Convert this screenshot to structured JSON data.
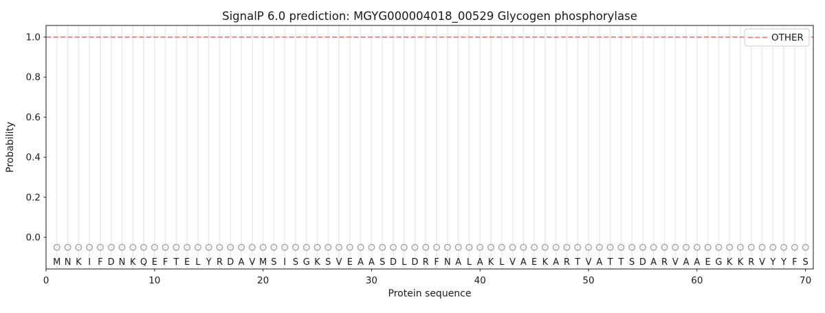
{
  "figure": {
    "title": "SignalP 6.0 prediction: MGYG000004018_00529 Glycogen phosphorylase"
  },
  "chart_data": {
    "type": "line",
    "title": "SignalP 6.0 prediction: MGYG000004018_00529 Glycogen phosphorylase",
    "xlabel": "Protein sequence",
    "ylabel": "Probability",
    "xlim": [
      0,
      70.72
    ],
    "ylim": [
      -0.158,
      1.058
    ],
    "xticks": [
      0,
      10,
      20,
      30,
      40,
      50,
      60,
      70
    ],
    "yticks": [
      0.0,
      0.2,
      0.4,
      0.6,
      0.8,
      1.0
    ],
    "grid": {
      "vertical_per_residue": true,
      "color": "#ededed"
    },
    "sequence": "MNKIFDNKQEFTELYRDAVMSISGKSVEAASDLDRFNALAKLVAEKARTVATTSDARVAAEGKKRVYYFS",
    "sequence_marker": {
      "shape": "open-circle",
      "y": -0.05,
      "color": "#a0a0a0"
    },
    "series": [
      {
        "name": "OTHER",
        "color": "#ee7f7f",
        "linestyle": "dashed",
        "extends_full_axis": true,
        "x": [
          1,
          2,
          3,
          4,
          5,
          6,
          7,
          8,
          9,
          10,
          11,
          12,
          13,
          14,
          15,
          16,
          17,
          18,
          19,
          20,
          21,
          22,
          23,
          24,
          25,
          26,
          27,
          28,
          29,
          30,
          31,
          32,
          33,
          34,
          35,
          36,
          37,
          38,
          39,
          40,
          41,
          42,
          43,
          44,
          45,
          46,
          47,
          48,
          49,
          50,
          51,
          52,
          53,
          54,
          55,
          56,
          57,
          58,
          59,
          60,
          61,
          62,
          63,
          64,
          65,
          66,
          67,
          68,
          69,
          70
        ],
        "values": [
          1.0,
          1.0,
          1.0,
          1.0,
          1.0,
          1.0,
          1.0,
          1.0,
          1.0,
          1.0,
          1.0,
          1.0,
          1.0,
          1.0,
          1.0,
          1.0,
          1.0,
          1.0,
          1.0,
          1.0,
          1.0,
          1.0,
          1.0,
          1.0,
          1.0,
          1.0,
          1.0,
          1.0,
          1.0,
          1.0,
          1.0,
          1.0,
          1.0,
          1.0,
          1.0,
          1.0,
          1.0,
          1.0,
          1.0,
          1.0,
          1.0,
          1.0,
          1.0,
          1.0,
          1.0,
          1.0,
          1.0,
          1.0,
          1.0,
          1.0,
          1.0,
          1.0,
          1.0,
          1.0,
          1.0,
          1.0,
          1.0,
          1.0,
          1.0,
          1.0,
          1.0,
          1.0,
          1.0,
          1.0,
          1.0,
          1.0,
          1.0,
          1.0,
          1.0,
          1.0
        ]
      }
    ],
    "legend": {
      "location": "upper right",
      "entries": [
        {
          "label": "OTHER",
          "color": "#ee7f7f",
          "linestyle": "dashed"
        }
      ]
    }
  }
}
